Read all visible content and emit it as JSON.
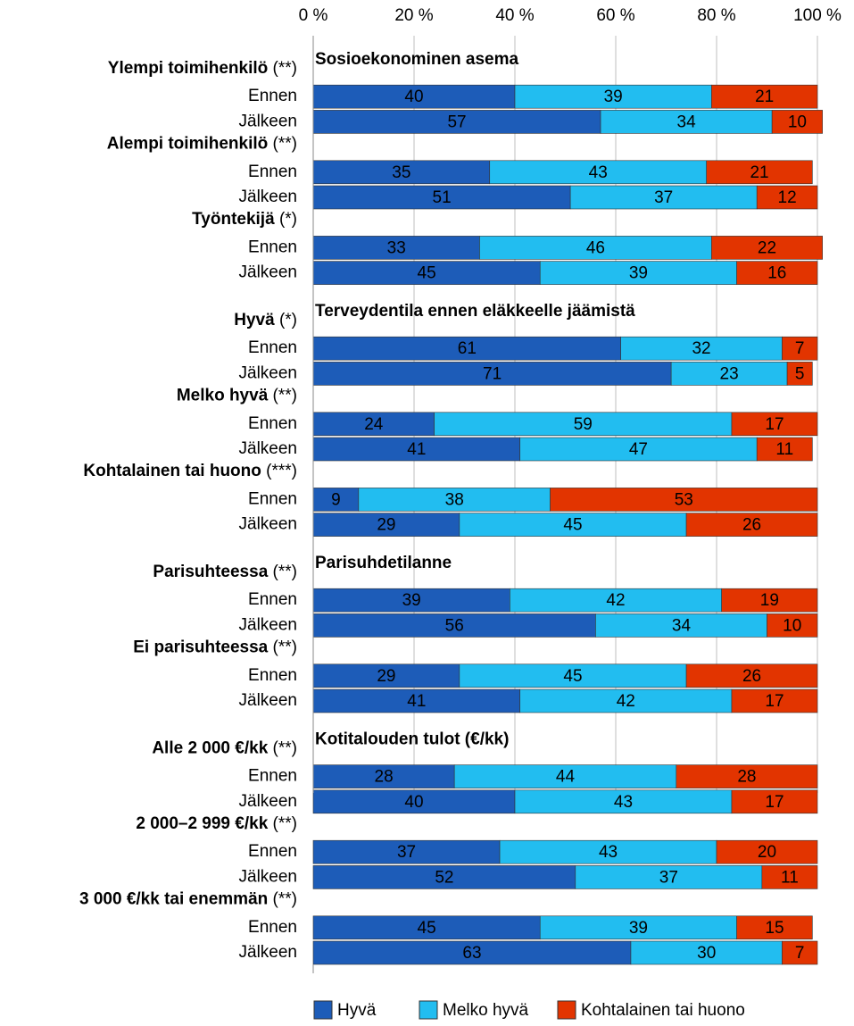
{
  "chart_data": {
    "type": "bar",
    "orientation": "horizontal",
    "stacked": true,
    "xlim": [
      0,
      100
    ],
    "xticks": [
      {
        "value": 0,
        "label": "0 %"
      },
      {
        "value": 20,
        "label": "20 %"
      },
      {
        "value": 40,
        "label": "40 %"
      },
      {
        "value": 60,
        "label": "60 %"
      },
      {
        "value": 80,
        "label": "80 %"
      },
      {
        "value": 100,
        "label": "100 %"
      }
    ],
    "grid": true,
    "legend": "bottom",
    "series": [
      {
        "name": "Hyvä",
        "color": "#1d5cb8"
      },
      {
        "name": "Melko hyvä",
        "color": "#22bdf0"
      },
      {
        "name": "Kohtalainen tai huono",
        "color": "#e23400"
      }
    ],
    "sections": [
      {
        "title": "Sosioekonominen asema",
        "groups": [
          {
            "label": "Ylempi toimihenkilö",
            "sig": "(**)",
            "rows": [
              {
                "category": "Ennen",
                "values": [
                  40,
                  39,
                  21
                ]
              },
              {
                "category": "Jälkeen",
                "values": [
                  57,
                  34,
                  10
                ]
              }
            ]
          },
          {
            "label": "Alempi toimihenkilö",
            "sig": "(**)",
            "rows": [
              {
                "category": "Ennen",
                "values": [
                  35,
                  43,
                  21
                ]
              },
              {
                "category": "Jälkeen",
                "values": [
                  51,
                  37,
                  12
                ]
              }
            ]
          },
          {
            "label": "Työntekijä",
            "sig": "(*)",
            "rows": [
              {
                "category": "Ennen",
                "values": [
                  33,
                  46,
                  22
                ]
              },
              {
                "category": "Jälkeen",
                "values": [
                  45,
                  39,
                  16
                ]
              }
            ]
          }
        ]
      },
      {
        "title": "Terveydentila ennen eläkkeelle jäämistä",
        "groups": [
          {
            "label": "Hyvä",
            "sig": "(*)",
            "rows": [
              {
                "category": "Ennen",
                "values": [
                  61,
                  32,
                  7
                ]
              },
              {
                "category": "Jälkeen",
                "values": [
                  71,
                  23,
                  5
                ]
              }
            ]
          },
          {
            "label": "Melko hyvä",
            "sig": "(**)",
            "rows": [
              {
                "category": "Ennen",
                "values": [
                  24,
                  59,
                  17
                ]
              },
              {
                "category": "Jälkeen",
                "values": [
                  41,
                  47,
                  11
                ]
              }
            ]
          },
          {
            "label": "Kohtalainen tai huono",
            "sig": "(***)",
            "rows": [
              {
                "category": "Ennen",
                "values": [
                  9,
                  38,
                  53
                ]
              },
              {
                "category": "Jälkeen",
                "values": [
                  29,
                  45,
                  26
                ]
              }
            ]
          }
        ]
      },
      {
        "title": "Parisuhdetilanne",
        "groups": [
          {
            "label": "Parisuhteessa",
            "sig": "(**)",
            "rows": [
              {
                "category": "Ennen",
                "values": [
                  39,
                  42,
                  19
                ]
              },
              {
                "category": "Jälkeen",
                "values": [
                  56,
                  34,
                  10
                ]
              }
            ]
          },
          {
            "label": "Ei parisuhteessa",
            "sig": "(**)",
            "rows": [
              {
                "category": "Ennen",
                "values": [
                  29,
                  45,
                  26
                ]
              },
              {
                "category": "Jälkeen",
                "values": [
                  41,
                  42,
                  17
                ]
              }
            ]
          }
        ]
      },
      {
        "title": "Kotitalouden tulot (€/kk)",
        "groups": [
          {
            "label": "Alle 2 000 €/kk",
            "sig": "(**)",
            "rows": [
              {
                "category": "Ennen",
                "values": [
                  28,
                  44,
                  28
                ]
              },
              {
                "category": "Jälkeen",
                "values": [
                  40,
                  43,
                  17
                ]
              }
            ]
          },
          {
            "label": "2 000–2 999 €/kk",
            "sig": "(**)",
            "rows": [
              {
                "category": "Ennen",
                "values": [
                  37,
                  43,
                  20
                ]
              },
              {
                "category": "Jälkeen",
                "values": [
                  52,
                  37,
                  11
                ]
              }
            ]
          },
          {
            "label": "3 000 €/kk tai enemmän",
            "sig": "(**)",
            "rows": [
              {
                "category": "Ennen",
                "values": [
                  45,
                  39,
                  15
                ]
              },
              {
                "category": "Jälkeen",
                "values": [
                  63,
                  30,
                  7
                ]
              }
            ]
          }
        ]
      }
    ]
  }
}
